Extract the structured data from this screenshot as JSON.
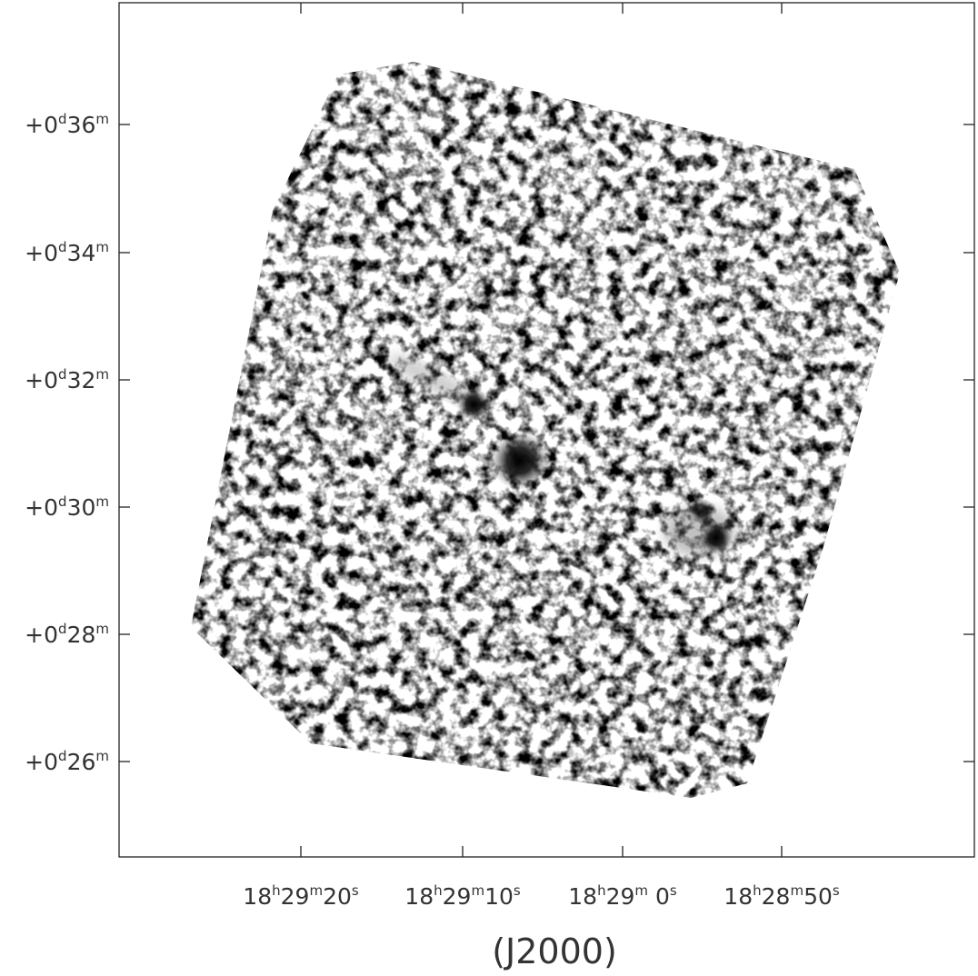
{
  "figure": {
    "x_axis": {
      "label": "(J2000)",
      "ticks": [
        [
          "18",
          "h",
          "29",
          "m",
          "20",
          "s"
        ],
        [
          "18",
          "h",
          "29",
          "m",
          "10",
          "s"
        ],
        [
          "18",
          "h",
          "29",
          "m",
          " 0",
          "s"
        ],
        [
          "18",
          "h",
          "28",
          "m",
          "50",
          "s"
        ]
      ]
    },
    "y_axis": {
      "ticks": [
        [
          "+0",
          "d",
          "36",
          "m"
        ],
        [
          "+0",
          "d",
          "34",
          "m"
        ],
        [
          "+0",
          "d",
          "32",
          "m"
        ],
        [
          "+0",
          "d",
          "30",
          "m"
        ],
        [
          "+0",
          "d",
          "28",
          "m"
        ],
        [
          "+0",
          "d",
          "26",
          "m"
        ]
      ]
    }
  }
}
